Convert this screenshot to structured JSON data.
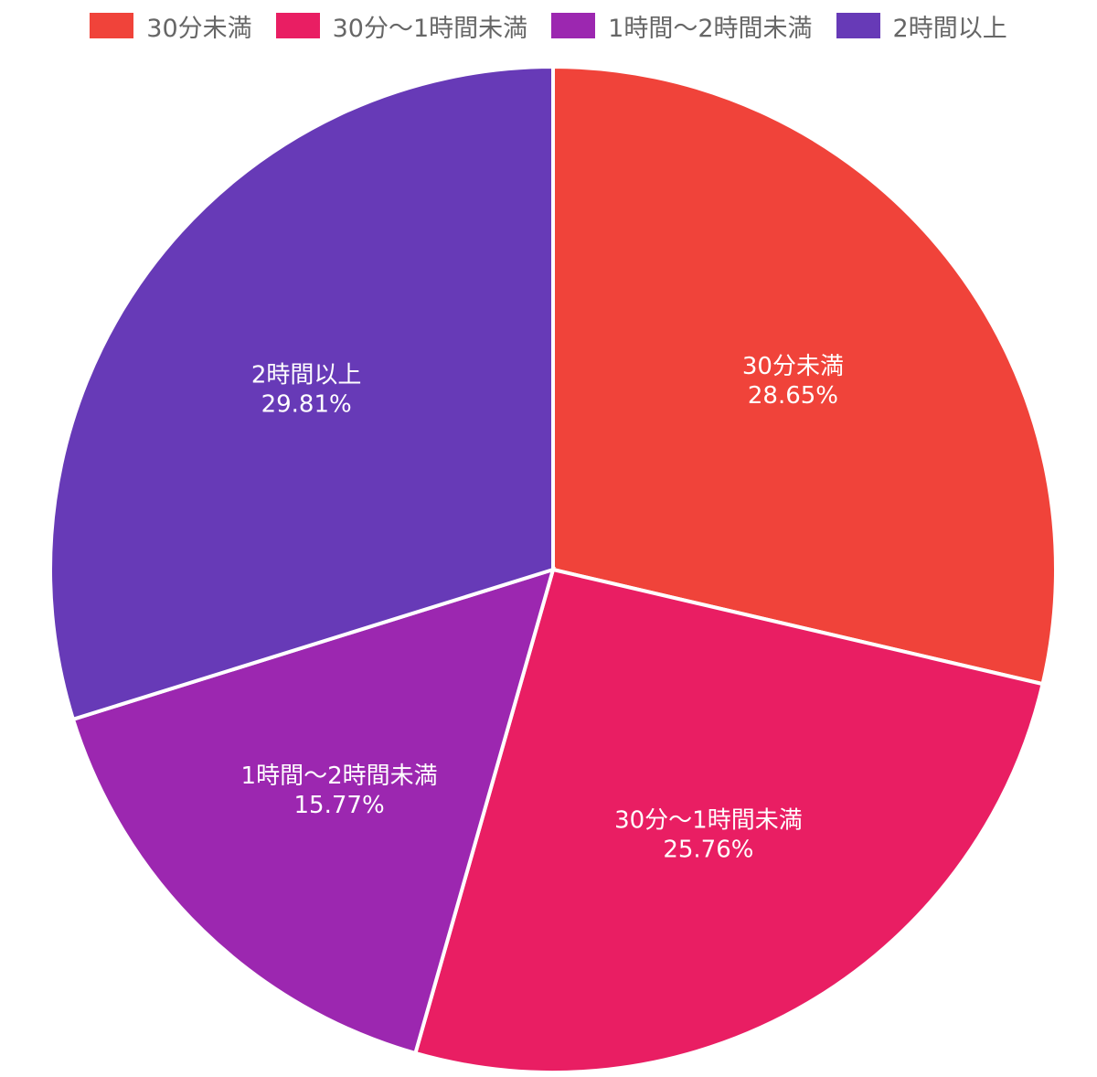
{
  "chart_data": {
    "type": "pie",
    "title": "",
    "legend_position": "top",
    "categories": [
      "30分未満",
      "30分〜1時間未満",
      "1時間〜2時間未満",
      "2時間以上"
    ],
    "values": [
      28.65,
      25.76,
      15.77,
      29.81
    ],
    "value_labels": [
      "28.65%",
      "25.76%",
      "15.77%",
      "29.81%"
    ],
    "colors": [
      "#f0433a",
      "#e91e63",
      "#9c27b0",
      "#673ab7"
    ],
    "start_angle": "12 o'clock",
    "direction": "clockwise"
  }
}
